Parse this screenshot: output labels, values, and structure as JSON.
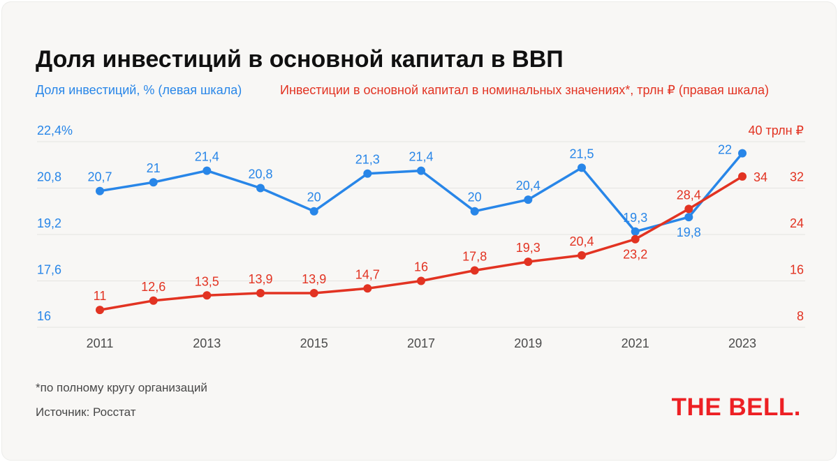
{
  "title": "Доля инвестиций в основной капитал в ВВП",
  "legend": {
    "left": "Доля инвестиций, % (левая шкала)",
    "right": "Инвестиции в основной капитал в номинальных значениях*, трлн ₽ (правая шкала)"
  },
  "colors": {
    "blue": "#2886e8",
    "red": "#e23322",
    "grid": "#e5e4e1",
    "axis_text": "#4b4b4b",
    "logo_red": "#ed2024"
  },
  "chart_data": {
    "type": "line",
    "x": [
      2011,
      2012,
      2013,
      2014,
      2015,
      2016,
      2017,
      2018,
      2019,
      2020,
      2021,
      2022,
      2023
    ],
    "x_ticks": [
      {
        "i": 0,
        "label": "2011"
      },
      {
        "i": 2,
        "label": "2013"
      },
      {
        "i": 4,
        "label": "2015"
      },
      {
        "i": 6,
        "label": "2017"
      },
      {
        "i": 8,
        "label": "2019"
      },
      {
        "i": 10,
        "label": "2021"
      },
      {
        "i": 12,
        "label": "2023"
      }
    ],
    "left_axis": {
      "min": 16,
      "max": 22.4,
      "ticks": [
        16,
        17.6,
        19.2,
        20.8,
        22.4
      ],
      "labels": [
        "16",
        "17,6",
        "19,2",
        "20,8",
        "22,4%"
      ]
    },
    "right_axis": {
      "min": 8,
      "max": 40,
      "ticks": [
        8,
        16,
        24,
        32,
        40
      ],
      "labels": [
        "8",
        "16",
        "24",
        "32",
        "40 трлн ₽"
      ]
    },
    "grid": true,
    "legend_position": "top",
    "series": [
      {
        "name": "Доля инвестиций, %",
        "axis": "left",
        "color_key": "blue",
        "values": [
          20.7,
          21,
          21.4,
          20.8,
          20,
          21.3,
          21.4,
          20,
          20.4,
          21.5,
          19.3,
          19.8,
          22
        ],
        "labels": [
          "20,7",
          "21",
          "21,4",
          "20,8",
          "20",
          "21,3",
          "21,4",
          "20",
          "20,4",
          "21,5",
          "19,3",
          "19,8",
          "22"
        ],
        "label_pos": [
          "above",
          "above",
          "above",
          "above",
          "above",
          "above",
          "above",
          "above",
          "above",
          "above",
          "above",
          "below",
          "left"
        ]
      },
      {
        "name": "Инвестиции в основной капитал в номинальных значениях, трлн ₽",
        "axis": "right",
        "color_key": "red",
        "values": [
          11,
          12.6,
          13.5,
          13.9,
          13.9,
          14.7,
          16,
          17.8,
          19.3,
          20.4,
          23.2,
          28.4,
          34
        ],
        "labels": [
          "11",
          "12,6",
          "13,5",
          "13,9",
          "13,9",
          "14,7",
          "16",
          "17,8",
          "19,3",
          "20,4",
          "23,2",
          "28,4",
          "34"
        ],
        "label_pos": [
          "above",
          "above",
          "above",
          "above",
          "above",
          "above",
          "above",
          "above",
          "above",
          "above",
          "below",
          "above",
          "right"
        ]
      }
    ]
  },
  "footnote": "*по полному кругу организаций",
  "source": "Источник: Росстат",
  "logo": "THE BELL."
}
